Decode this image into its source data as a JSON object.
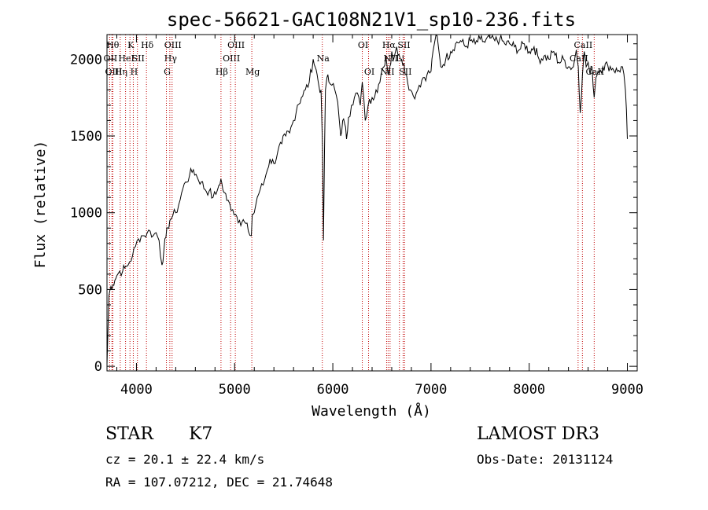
{
  "chart_data": {
    "type": "line",
    "title": "spec-56621-GAC108N21V1_sp10-236.fits",
    "xlabel": "Wavelength (Å)",
    "ylabel": "Flux (relative)",
    "xlim": [
      3700,
      9100
    ],
    "ylim": [
      -30,
      2160
    ],
    "xticks": [
      4000,
      5000,
      6000,
      7000,
      8000,
      9000
    ],
    "yticks": [
      0,
      500,
      1000,
      1500,
      2000
    ],
    "series": [
      {
        "name": "flux",
        "x": [
          3700,
          3720,
          3740,
          3760,
          3780,
          3800,
          3830,
          3860,
          3880,
          3900,
          3930,
          3960,
          3990,
          4020,
          4050,
          4080,
          4110,
          4140,
          4170,
          4200,
          4230,
          4260,
          4280,
          4300,
          4320,
          4340,
          4370,
          4400,
          4430,
          4460,
          4500,
          4540,
          4580,
          4620,
          4660,
          4700,
          4740,
          4780,
          4810,
          4840,
          4860,
          4880,
          4900,
          4920,
          4950,
          4980,
          5010,
          5050,
          5100,
          5140,
          5170,
          5180,
          5200,
          5230,
          5260,
          5290,
          5320,
          5360,
          5400,
          5440,
          5480,
          5520,
          5560,
          5600,
          5640,
          5680,
          5720,
          5760,
          5800,
          5820,
          5840,
          5860,
          5880,
          5895,
          5905,
          5915,
          5925,
          5940,
          5960,
          5990,
          6020,
          6050,
          6080,
          6100,
          6120,
          6140,
          6160,
          6190,
          6220,
          6250,
          6280,
          6300,
          6330,
          6360,
          6400,
          6440,
          6480,
          6520,
          6540,
          6563,
          6580,
          6600,
          6620,
          6650,
          6700,
          6750,
          6790,
          6820,
          6850,
          6880,
          6920,
          6960,
          7000,
          7020,
          7050,
          7100,
          7150,
          7200,
          7250,
          7300,
          7350,
          7400,
          7450,
          7500,
          7550,
          7600,
          7650,
          7700,
          7750,
          7800,
          7850,
          7900,
          7950,
          8000,
          8050,
          8100,
          8150,
          8200,
          8250,
          8300,
          8350,
          8400,
          8450,
          8480,
          8500,
          8520,
          8542,
          8560,
          8580,
          8600,
          8620,
          8640,
          8662,
          8680,
          8700,
          8750,
          8800,
          8850,
          8900,
          8950,
          8980,
          9000
        ],
        "values": [
          10,
          460,
          520,
          530,
          560,
          590,
          620,
          620,
          640,
          650,
          680,
          720,
          780,
          830,
          850,
          850,
          870,
          880,
          850,
          870,
          820,
          660,
          760,
          840,
          900,
          950,
          980,
          1000,
          1050,
          1130,
          1200,
          1240,
          1280,
          1230,
          1200,
          1150,
          1140,
          1100,
          1120,
          1180,
          1220,
          1150,
          1130,
          1080,
          1060,
          1020,
          990,
          950,
          940,
          880,
          850,
          990,
          1000,
          1100,
          1150,
          1180,
          1250,
          1350,
          1320,
          1400,
          1450,
          1500,
          1520,
          1600,
          1700,
          1750,
          1800,
          1850,
          2000,
          1950,
          1900,
          1820,
          1800,
          1420,
          820,
          1400,
          1800,
          1880,
          1850,
          1830,
          1800,
          1720,
          1500,
          1600,
          1580,
          1480,
          1620,
          1700,
          1750,
          1780,
          1700,
          1850,
          1600,
          1700,
          1750,
          1800,
          1850,
          1950,
          2020,
          1900,
          1950,
          2050,
          2000,
          2080,
          2000,
          1900,
          1800,
          1760,
          1780,
          1830,
          1880,
          1900,
          1920,
          2050,
          2180,
          1950,
          2000,
          2050,
          2100,
          2120,
          2080,
          2120,
          2100,
          2130,
          2110,
          2140,
          2120,
          2130,
          2100,
          2100,
          2080,
          2060,
          2100,
          2050,
          2080,
          2000,
          2020,
          2000,
          2050,
          1980,
          2000,
          1950,
          1950,
          2060,
          1950,
          1650,
          1900,
          2050,
          1950,
          1980,
          1900,
          1950,
          1750,
          1880,
          1920,
          1950,
          1960,
          1940,
          1920,
          1950,
          1800,
          1480
        ]
      }
    ],
    "lines": [
      {
        "x": 3750,
        "label": "Hθ",
        "row": 0
      },
      {
        "x": 3727,
        "label": "OII",
        "row": 1
      },
      {
        "x": 3760,
        "label": "OIII",
        "row": 2
      },
      {
        "x": 3835,
        "label": "Hη",
        "row": 2
      },
      {
        "x": 3889,
        "label": "HeI",
        "row": 1
      },
      {
        "x": 3934,
        "label": "K",
        "row": 0
      },
      {
        "x": 3968,
        "label": "H",
        "row": 2
      },
      {
        "x": 4010,
        "label": "SII",
        "row": 1
      },
      {
        "x": 4102,
        "label": "Hδ",
        "row": 0
      },
      {
        "x": 4340,
        "label": "Hγ",
        "row": 1
      },
      {
        "x": 4305,
        "label": "G",
        "row": 2
      },
      {
        "x": 4363,
        "label": "OIII",
        "row": 0
      },
      {
        "x": 4861,
        "label": "Hβ",
        "row": 2
      },
      {
        "x": 4959,
        "label": "OIII",
        "row": 1
      },
      {
        "x": 5007,
        "label": "OIII",
        "row": 0
      },
      {
        "x": 5175,
        "label": "Mg",
        "row": 2
      },
      {
        "x": 5893,
        "label": "Na",
        "row": 1
      },
      {
        "x": 6300,
        "label": "OI",
        "row": 0
      },
      {
        "x": 6364,
        "label": "OI",
        "row": 2
      },
      {
        "x": 6548,
        "label": "NII",
        "row": 2
      },
      {
        "x": 6563,
        "label": "Hα",
        "row": 0
      },
      {
        "x": 6583,
        "label": "NII",
        "row": 1
      },
      {
        "x": 6678,
        "label": "Li",
        "row": 1
      },
      {
        "x": 6716,
        "label": "SII",
        "row": 0
      },
      {
        "x": 6731,
        "label": "SII",
        "row": 2
      },
      {
        "x": 8498,
        "label": "CaII",
        "row": 1
      },
      {
        "x": 8542,
        "label": "CaII",
        "row": 0
      },
      {
        "x": 8662,
        "label": "CaII",
        "row": 2
      }
    ],
    "line_color": "#c00000"
  },
  "info": {
    "object_class": "STAR",
    "subclass": "K7",
    "redshift": "cz = 20.1 ± 22.4 km/s",
    "coords": "RA = 107.07212, DEC =  21.74648",
    "survey": "LAMOST DR3",
    "obs_date": "Obs-Date: 20131124"
  }
}
